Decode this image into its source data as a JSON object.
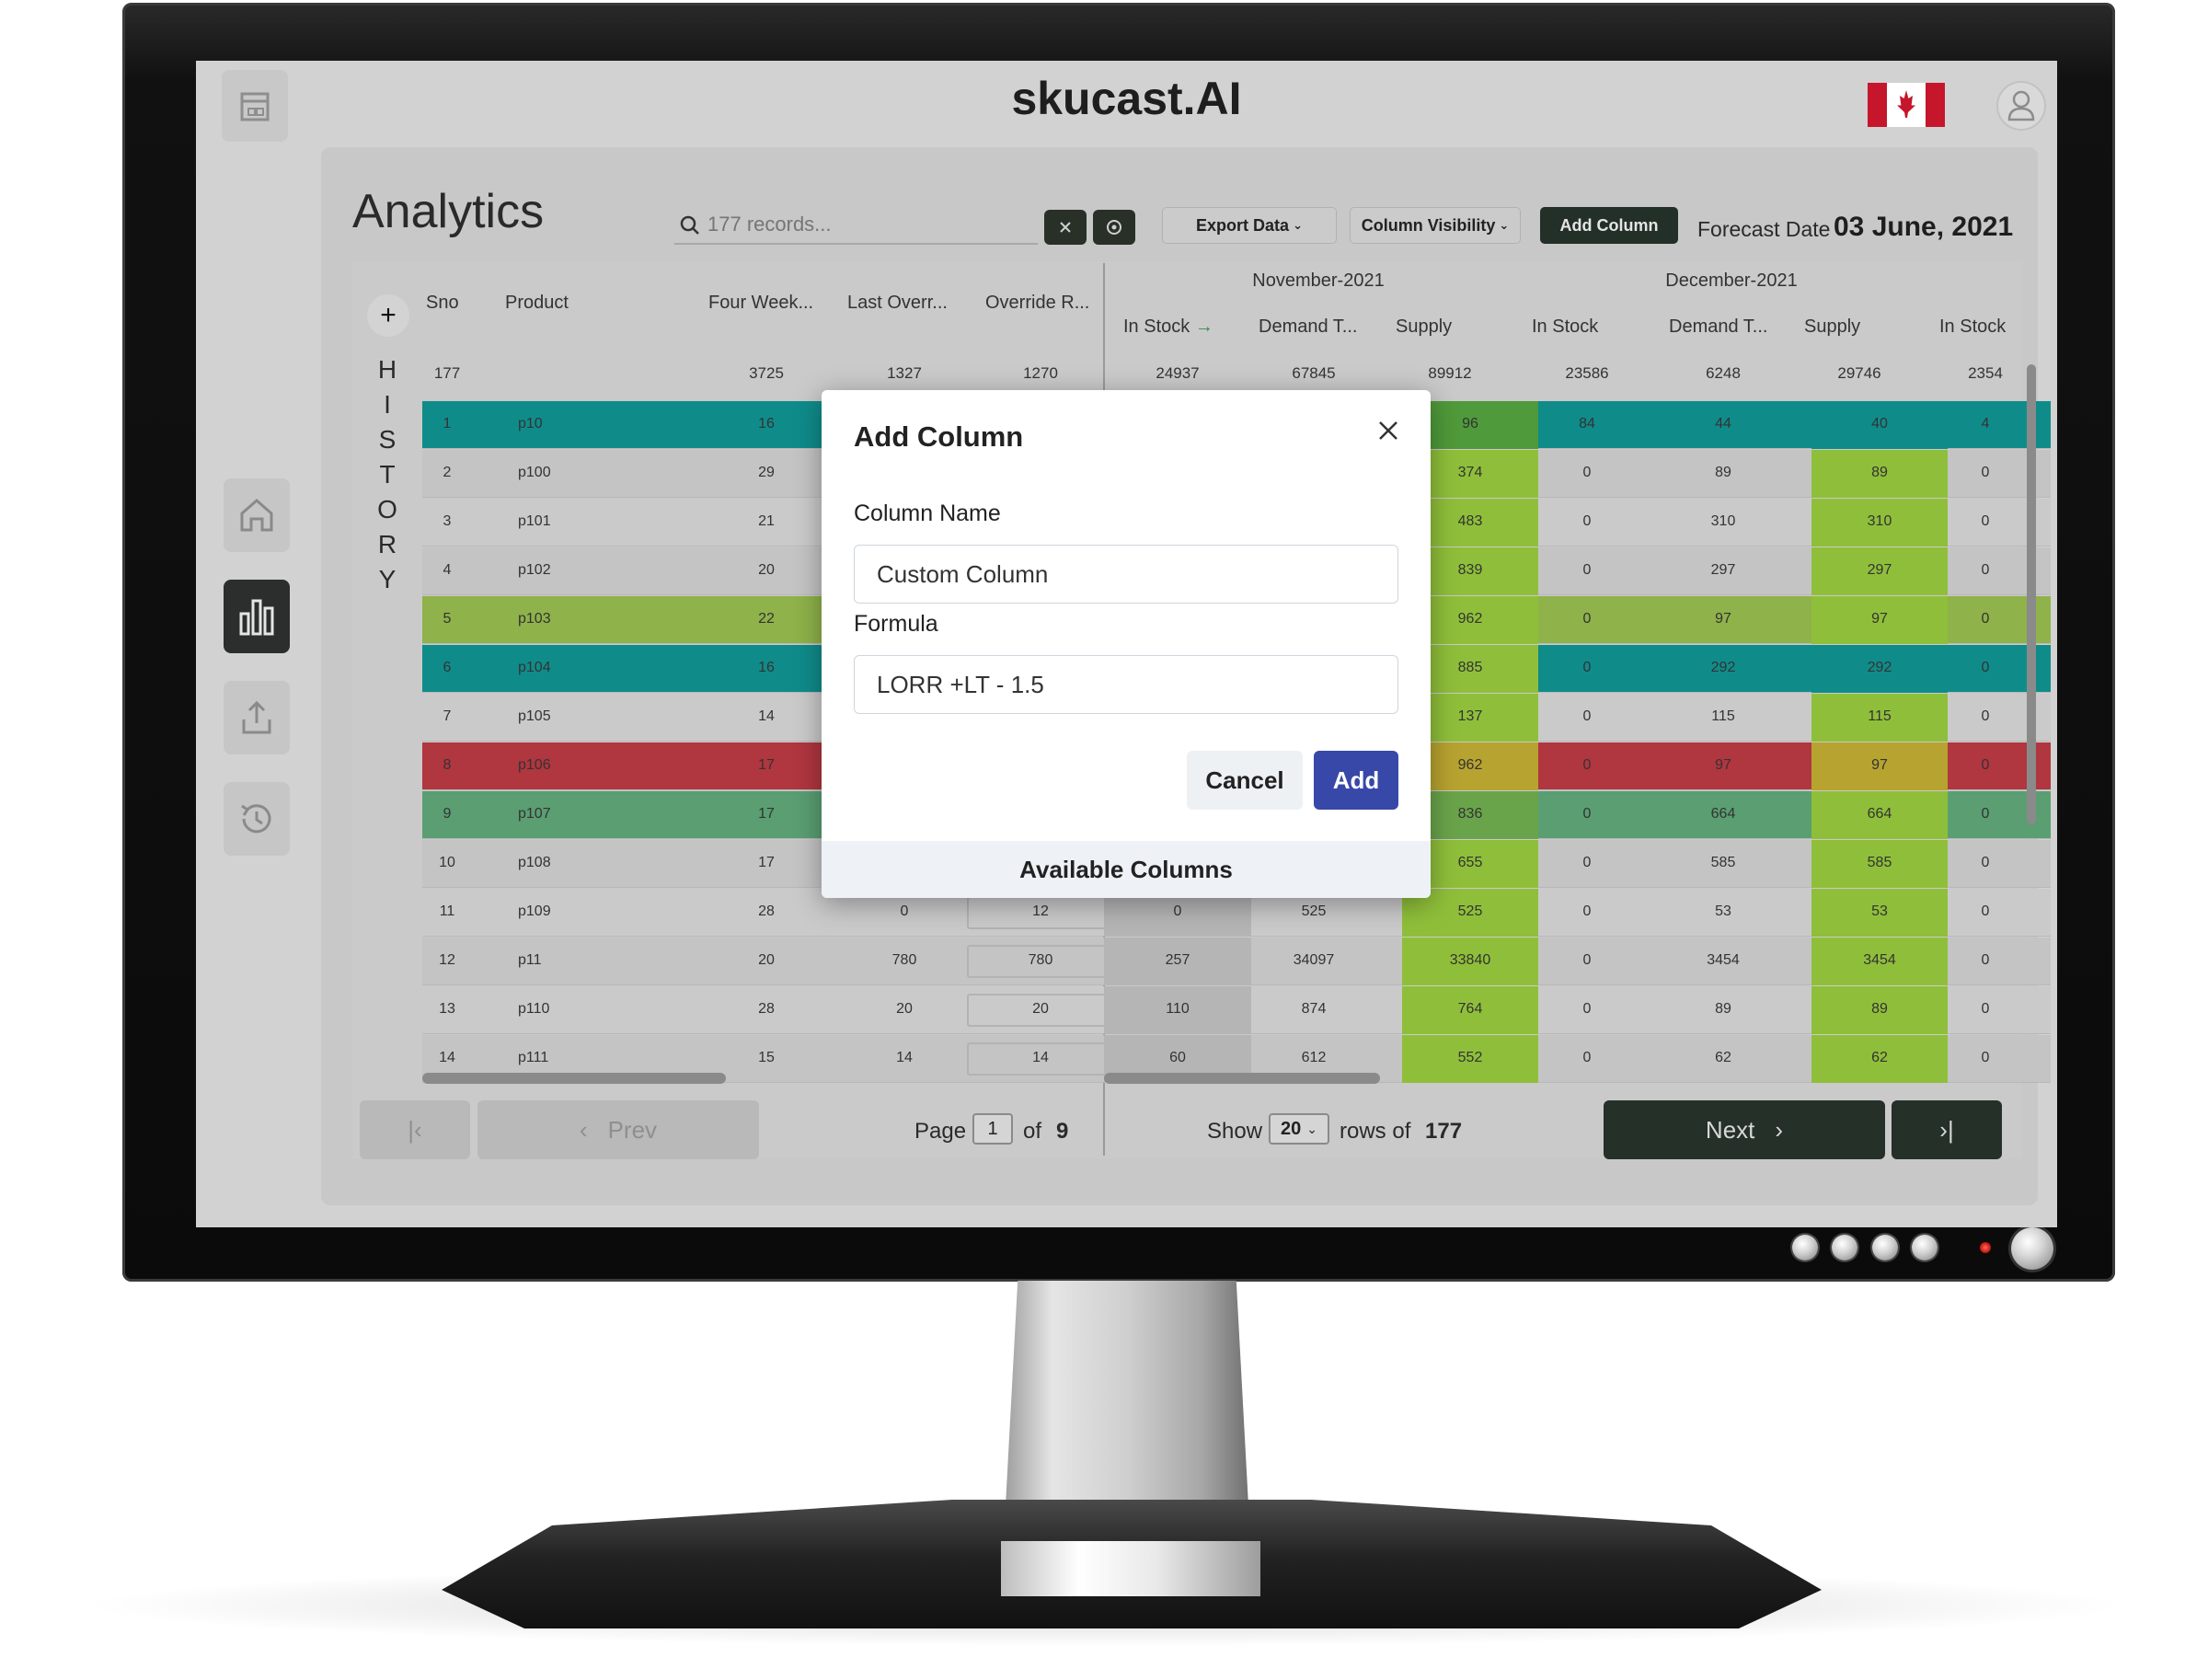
{
  "app": {
    "title": "skucast.AI"
  },
  "page": {
    "title": "Analytics"
  },
  "toolbar": {
    "search_placeholder": "177 records...",
    "export_label": "Export Data",
    "column_visibility_label": "Column Visibility",
    "add_column_label": "Add Column",
    "forecast_label": "Forecast Date",
    "forecast_value": "03 June, 2021"
  },
  "history_letters": [
    "H",
    "I",
    "S",
    "T",
    "O",
    "R",
    "Y"
  ],
  "table": {
    "fixed_headers": [
      "Sno",
      "Product",
      "Four Week...",
      "Last Overr...",
      "Override R..."
    ],
    "months": [
      "November-2021",
      "December-2021"
    ],
    "month_sub_headers": [
      "In Stock",
      "Demand T...",
      "Supply",
      "In Stock",
      "Demand T...",
      "Supply",
      "In Stock"
    ],
    "totals": [
      "177",
      "3725",
      "1327",
      "1270",
      "24937",
      "67845",
      "89912",
      "23586",
      "6248",
      "29746",
      "2354"
    ],
    "rows": [
      {
        "sno": "1",
        "product": "p10",
        "four_week": "16",
        "last_override": "",
        "override_r": "",
        "nov_in_stock": "",
        "nov_demand": "",
        "nov_supply": "96",
        "dec_in_stock": "84",
        "dec_demand": "44",
        "dec_supply": "40",
        "next_in_stock": "4",
        "row_color": "#0f8c8a"
      },
      {
        "sno": "2",
        "product": "p100",
        "four_week": "29",
        "last_override": "",
        "override_r": "",
        "nov_in_stock": "",
        "nov_demand": "",
        "nov_supply": "374",
        "dec_in_stock": "0",
        "dec_demand": "89",
        "dec_supply": "89",
        "next_in_stock": "0",
        "row_color": ""
      },
      {
        "sno": "3",
        "product": "p101",
        "four_week": "21",
        "last_override": "",
        "override_r": "",
        "nov_in_stock": "",
        "nov_demand": "",
        "nov_supply": "483",
        "dec_in_stock": "0",
        "dec_demand": "310",
        "dec_supply": "310",
        "next_in_stock": "0",
        "row_color": ""
      },
      {
        "sno": "4",
        "product": "p102",
        "four_week": "20",
        "last_override": "",
        "override_r": "",
        "nov_in_stock": "",
        "nov_demand": "",
        "nov_supply": "839",
        "dec_in_stock": "0",
        "dec_demand": "297",
        "dec_supply": "297",
        "next_in_stock": "0",
        "row_color": ""
      },
      {
        "sno": "5",
        "product": "p103",
        "four_week": "22",
        "last_override": "",
        "override_r": "",
        "nov_in_stock": "",
        "nov_demand": "",
        "nov_supply": "962",
        "dec_in_stock": "0",
        "dec_demand": "97",
        "dec_supply": "97",
        "next_in_stock": "0",
        "row_color": "#8fb24a"
      },
      {
        "sno": "6",
        "product": "p104",
        "four_week": "16",
        "last_override": "",
        "override_r": "",
        "nov_in_stock": "",
        "nov_demand": "",
        "nov_supply": "885",
        "dec_in_stock": "0",
        "dec_demand": "292",
        "dec_supply": "292",
        "next_in_stock": "0",
        "row_color": "#0f8c8a"
      },
      {
        "sno": "7",
        "product": "p105",
        "four_week": "14",
        "last_override": "",
        "override_r": "",
        "nov_in_stock": "",
        "nov_demand": "",
        "nov_supply": "137",
        "dec_in_stock": "0",
        "dec_demand": "115",
        "dec_supply": "115",
        "next_in_stock": "0",
        "row_color": ""
      },
      {
        "sno": "8",
        "product": "p106",
        "four_week": "17",
        "last_override": "",
        "override_r": "",
        "nov_in_stock": "",
        "nov_demand": "",
        "nov_supply": "962",
        "dec_in_stock": "0",
        "dec_demand": "97",
        "dec_supply": "97",
        "next_in_stock": "0",
        "row_color": "#b0363f"
      },
      {
        "sno": "9",
        "product": "p107",
        "four_week": "17",
        "last_override": "",
        "override_r": "",
        "nov_in_stock": "",
        "nov_demand": "",
        "nov_supply": "836",
        "dec_in_stock": "0",
        "dec_demand": "664",
        "dec_supply": "664",
        "next_in_stock": "0",
        "row_color": "#5a9e72"
      },
      {
        "sno": "10",
        "product": "p108",
        "four_week": "17",
        "last_override": "",
        "override_r": "",
        "nov_in_stock": "",
        "nov_demand": "",
        "nov_supply": "655",
        "dec_in_stock": "0",
        "dec_demand": "585",
        "dec_supply": "585",
        "next_in_stock": "0",
        "row_color": ""
      },
      {
        "sno": "11",
        "product": "p109",
        "four_week": "28",
        "last_override": "0",
        "override_r": "12",
        "nov_in_stock": "0",
        "nov_demand": "525",
        "nov_supply": "525",
        "dec_in_stock": "0",
        "dec_demand": "53",
        "dec_supply": "53",
        "next_in_stock": "0",
        "row_color": ""
      },
      {
        "sno": "12",
        "product": "p11",
        "four_week": "20",
        "last_override": "780",
        "override_r": "780",
        "nov_in_stock": "257",
        "nov_demand": "34097",
        "nov_supply": "33840",
        "dec_in_stock": "0",
        "dec_demand": "3454",
        "dec_supply": "3454",
        "next_in_stock": "0",
        "row_color": ""
      },
      {
        "sno": "13",
        "product": "p110",
        "four_week": "28",
        "last_override": "20",
        "override_r": "20",
        "nov_in_stock": "110",
        "nov_demand": "874",
        "nov_supply": "764",
        "dec_in_stock": "0",
        "dec_demand": "89",
        "dec_supply": "89",
        "next_in_stock": "0",
        "row_color": ""
      },
      {
        "sno": "14",
        "product": "p111",
        "four_week": "15",
        "last_override": "14",
        "override_r": "14",
        "nov_in_stock": "60",
        "nov_demand": "612",
        "nov_supply": "552",
        "dec_in_stock": "0",
        "dec_demand": "62",
        "dec_supply": "62",
        "next_in_stock": "0",
        "row_color": ""
      }
    ]
  },
  "pagination": {
    "prev_label": "Prev",
    "next_label": "Next",
    "page_label": "Page",
    "current_page": "1",
    "of_label": "of",
    "total_pages": "9",
    "show_label": "Show",
    "page_size": "20",
    "rows_of_label": "rows of",
    "total_rows": "177"
  },
  "modal": {
    "title": "Add Column",
    "column_name_label": "Column Name",
    "column_name_value": "Custom Column",
    "formula_label": "Formula",
    "formula_value": "LORR +LT - 1.5",
    "cancel_label": "Cancel",
    "add_label": "Add",
    "available_columns_label": "Available Columns"
  },
  "colors": {
    "supply_green": "#8fbf3a",
    "supply_dark_green": "#4f9a3a",
    "supply_orange": "#b7a330",
    "primary_dark": "#243028",
    "modal_add": "#3848a8"
  }
}
